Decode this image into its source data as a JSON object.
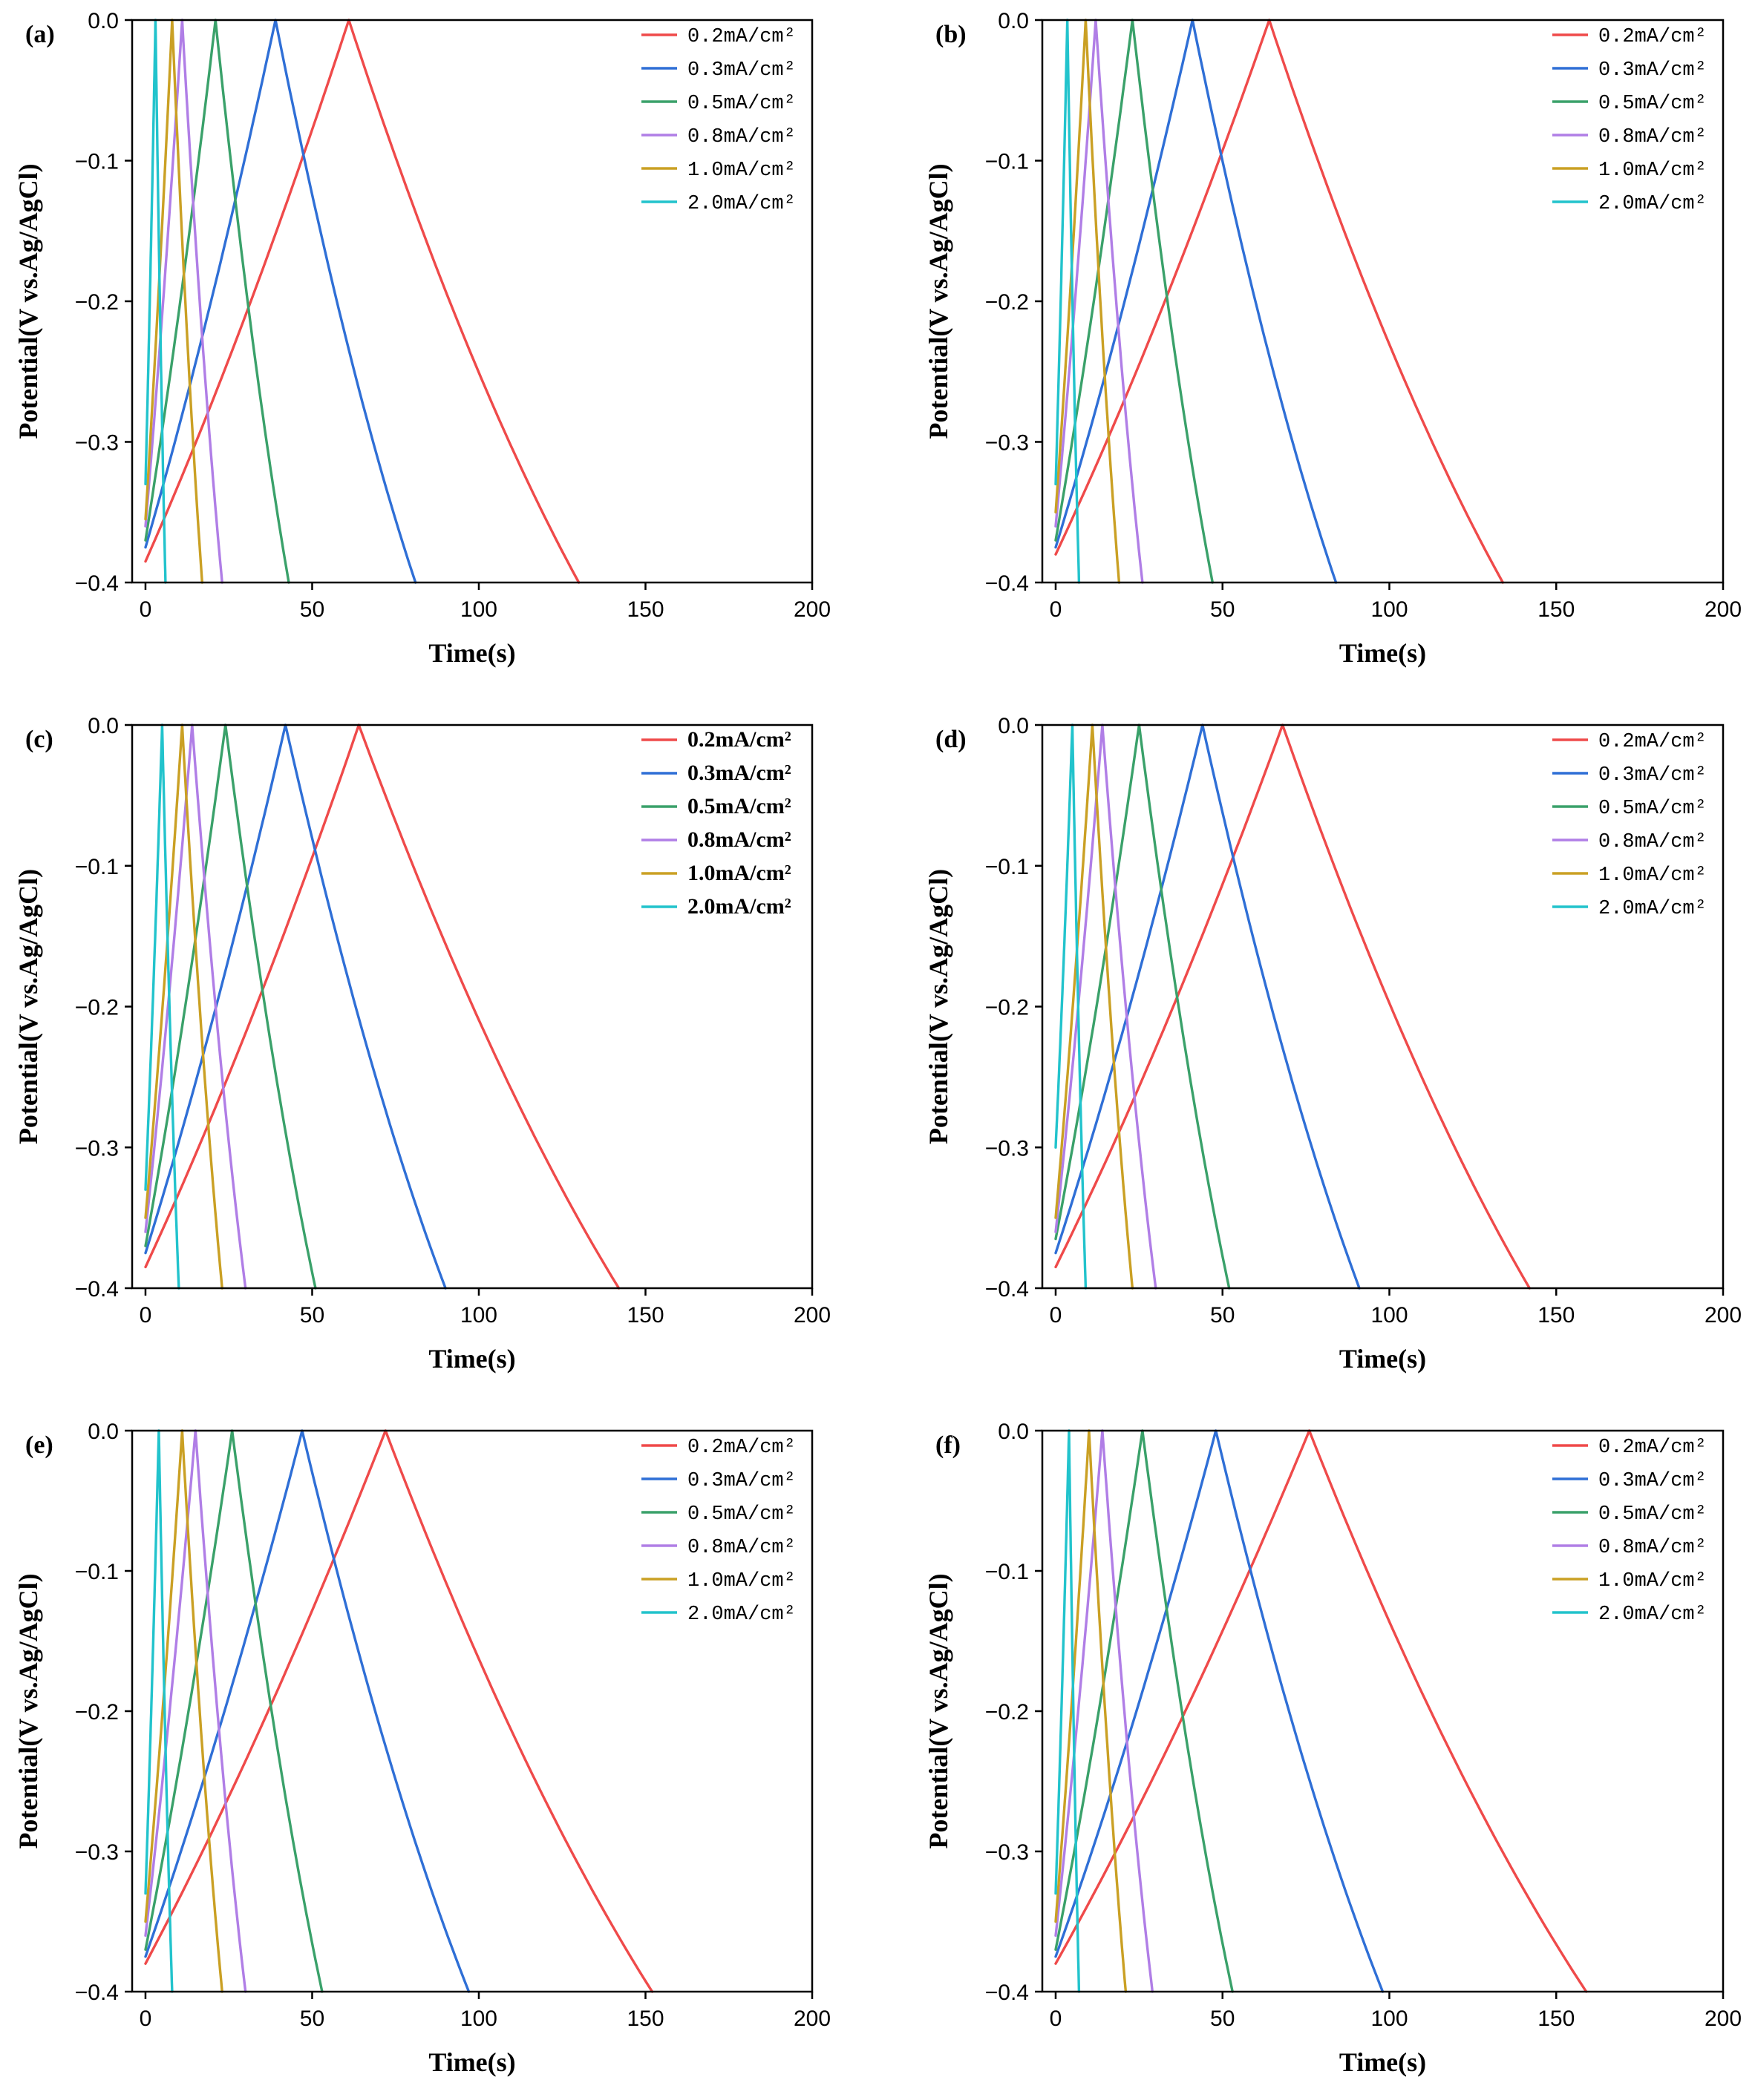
{
  "colors": {
    "0.2": "#ef4a4a",
    "0.3": "#2f6fd6",
    "0.5": "#3aa16a",
    "0.8": "#b07ee6",
    "1.0": "#caa024",
    "2.0": "#22c3cc"
  },
  "chart_data": [
    {
      "type": "line",
      "panel": "(a)",
      "xlabel": "Time(s)",
      "ylabel": "Potential(V vs.Ag/AgCl)",
      "xlim": [
        0,
        200
      ],
      "ylim": [
        -0.4,
        0.0
      ],
      "xticks": [
        "0",
        "50",
        "100",
        "150",
        "200"
      ],
      "yticks": [
        "-0.4",
        "-0.3",
        "-0.2",
        "-0.1",
        "0.0"
      ],
      "legend_bold": false,
      "series": [
        {
          "name": "0.2mA/cm²",
          "color_key": "0.2",
          "start": -0.385,
          "peak_time": 61,
          "end_time": 130
        },
        {
          "name": "0.3mA/cm²",
          "color_key": "0.3",
          "start": -0.375,
          "peak_time": 39,
          "end_time": 81
        },
        {
          "name": "0.5mA/cm²",
          "color_key": "0.5",
          "start": -0.37,
          "peak_time": 21,
          "end_time": 43
        },
        {
          "name": "0.8mA/cm²",
          "color_key": "0.8",
          "start": -0.36,
          "peak_time": 11,
          "end_time": 23
        },
        {
          "name": "1.0mA/cm²",
          "color_key": "1.0",
          "start": -0.355,
          "peak_time": 8,
          "end_time": 17
        },
        {
          "name": "2.0mA/cm²",
          "color_key": "2.0",
          "start": -0.33,
          "peak_time": 3,
          "end_time": 6
        }
      ]
    },
    {
      "type": "line",
      "panel": "(b)",
      "xlabel": "Time(s)",
      "ylabel": "Potential(V vs.Ag/AgCl)",
      "xlim": [
        0,
        200
      ],
      "ylim": [
        -0.4,
        0.0
      ],
      "xticks": [
        "0",
        "50",
        "100",
        "150",
        "200"
      ],
      "yticks": [
        "-0.4",
        "-0.3",
        "-0.2",
        "-0.1",
        "0.0"
      ],
      "legend_bold": false,
      "series": [
        {
          "name": "0.2mA/cm²",
          "color_key": "0.2",
          "start": -0.38,
          "peak_time": 64,
          "end_time": 134
        },
        {
          "name": "0.3mA/cm²",
          "color_key": "0.3",
          "start": -0.375,
          "peak_time": 41,
          "end_time": 84
        },
        {
          "name": "0.5mA/cm²",
          "color_key": "0.5",
          "start": -0.37,
          "peak_time": 23,
          "end_time": 47
        },
        {
          "name": "0.8mA/cm²",
          "color_key": "0.8",
          "start": -0.36,
          "peak_time": 12,
          "end_time": 26
        },
        {
          "name": "1.0mA/cm²",
          "color_key": "1.0",
          "start": -0.35,
          "peak_time": 9,
          "end_time": 19
        },
        {
          "name": "2.0mA/cm²",
          "color_key": "2.0",
          "start": -0.33,
          "peak_time": 3.5,
          "end_time": 7
        }
      ]
    },
    {
      "type": "line",
      "panel": "(c)",
      "xlabel": "Time(s)",
      "ylabel": "Potential(V vs.Ag/AgCl)",
      "xlim": [
        0,
        200
      ],
      "ylim": [
        -0.4,
        0.0
      ],
      "xticks": [
        "0",
        "50",
        "100",
        "150",
        "200"
      ],
      "yticks": [
        "-0.4",
        "-0.3",
        "-0.2",
        "-0.1",
        "0.0"
      ],
      "legend_bold": true,
      "series": [
        {
          "name": "0.2mA/cm²",
          "color_key": "0.2",
          "start": -0.385,
          "peak_time": 64,
          "end_time": 142
        },
        {
          "name": "0.3mA/cm²",
          "color_key": "0.3",
          "start": -0.375,
          "peak_time": 42,
          "end_time": 90
        },
        {
          "name": "0.5mA/cm²",
          "color_key": "0.5",
          "start": -0.37,
          "peak_time": 24,
          "end_time": 51
        },
        {
          "name": "0.8mA/cm²",
          "color_key": "0.8",
          "start": -0.36,
          "peak_time": 14,
          "end_time": 30
        },
        {
          "name": "1.0mA/cm²",
          "color_key": "1.0",
          "start": -0.35,
          "peak_time": 11,
          "end_time": 23
        },
        {
          "name": "2.0mA/cm²",
          "color_key": "2.0",
          "start": -0.33,
          "peak_time": 5,
          "end_time": 10
        }
      ]
    },
    {
      "type": "line",
      "panel": "(d)",
      "xlabel": "Time(s)",
      "ylabel": "Potential(V vs.Ag/AgCl)",
      "xlim": [
        0,
        200
      ],
      "ylim": [
        -0.4,
        0.0
      ],
      "xticks": [
        "0",
        "50",
        "100",
        "150",
        "200"
      ],
      "yticks": [
        "-0.4",
        "-0.3",
        "-0.2",
        "-0.1",
        "0.0"
      ],
      "legend_bold": false,
      "series": [
        {
          "name": "0.2mA/cm²",
          "color_key": "0.2",
          "start": -0.385,
          "peak_time": 68,
          "end_time": 142
        },
        {
          "name": "0.3mA/cm²",
          "color_key": "0.3",
          "start": -0.375,
          "peak_time": 44,
          "end_time": 91
        },
        {
          "name": "0.5mA/cm²",
          "color_key": "0.5",
          "start": -0.365,
          "peak_time": 25,
          "end_time": 52
        },
        {
          "name": "0.8mA/cm²",
          "color_key": "0.8",
          "start": -0.36,
          "peak_time": 14,
          "end_time": 30
        },
        {
          "name": "1.0mA/cm²",
          "color_key": "1.0",
          "start": -0.35,
          "peak_time": 11,
          "end_time": 23
        },
        {
          "name": "2.0mA/cm²",
          "color_key": "2.0",
          "start": -0.3,
          "peak_time": 5,
          "end_time": 9
        }
      ]
    },
    {
      "type": "line",
      "panel": "(e)",
      "xlabel": "Time(s)",
      "ylabel": "Potential(V vs.Ag/AgCl)",
      "xlim": [
        0,
        200
      ],
      "ylim": [
        -0.4,
        0.0
      ],
      "xticks": [
        "0",
        "50",
        "100",
        "150",
        "200"
      ],
      "yticks": [
        "-0.4",
        "-0.3",
        "-0.2",
        "-0.1",
        "0.0"
      ],
      "legend_bold": false,
      "series": [
        {
          "name": "0.2mA/cm²",
          "color_key": "0.2",
          "start": -0.38,
          "peak_time": 72,
          "end_time": 152
        },
        {
          "name": "0.3mA/cm²",
          "color_key": "0.3",
          "start": -0.375,
          "peak_time": 47,
          "end_time": 97
        },
        {
          "name": "0.5mA/cm²",
          "color_key": "0.5",
          "start": -0.37,
          "peak_time": 26,
          "end_time": 53
        },
        {
          "name": "0.8mA/cm²",
          "color_key": "0.8",
          "start": -0.36,
          "peak_time": 15,
          "end_time": 30
        },
        {
          "name": "1.0mA/cm²",
          "color_key": "1.0",
          "start": -0.35,
          "peak_time": 11,
          "end_time": 23
        },
        {
          "name": "2.0mA/cm²",
          "color_key": "2.0",
          "start": -0.33,
          "peak_time": 4,
          "end_time": 8
        }
      ]
    },
    {
      "type": "line",
      "panel": "(f)",
      "xlabel": "Time(s)",
      "ylabel": "Potential(V vs.Ag/AgCl)",
      "xlim": [
        0,
        200
      ],
      "ylim": [
        -0.4,
        0.0
      ],
      "xticks": [
        "0",
        "50",
        "100",
        "150",
        "200"
      ],
      "yticks": [
        "-0.4",
        "-0.3",
        "-0.2",
        "-0.1",
        "0.0"
      ],
      "legend_bold": false,
      "series": [
        {
          "name": "0.2mA/cm²",
          "color_key": "0.2",
          "start": -0.38,
          "peak_time": 76,
          "end_time": 159
        },
        {
          "name": "0.3mA/cm²",
          "color_key": "0.3",
          "start": -0.375,
          "peak_time": 48,
          "end_time": 98
        },
        {
          "name": "0.5mA/cm²",
          "color_key": "0.5",
          "start": -0.37,
          "peak_time": 26,
          "end_time": 53
        },
        {
          "name": "0.8mA/cm²",
          "color_key": "0.8",
          "start": -0.36,
          "peak_time": 14,
          "end_time": 29
        },
        {
          "name": "1.0mA/cm²",
          "color_key": "1.0",
          "start": -0.35,
          "peak_time": 10,
          "end_time": 21
        },
        {
          "name": "2.0mA/cm²",
          "color_key": "2.0",
          "start": -0.33,
          "peak_time": 4,
          "end_time": 7
        }
      ]
    }
  ]
}
